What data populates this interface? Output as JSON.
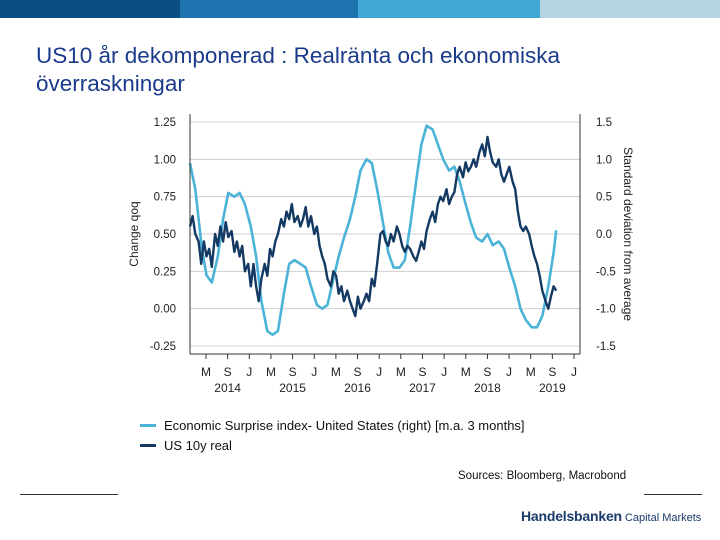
{
  "header": {
    "bar_colors": [
      "#0b4f82",
      "#1d73ad",
      "#3fa6d6",
      "#b6d3e3"
    ]
  },
  "slide": {
    "title": "US10 år dekomponerad : Realränta och ekonomiska överraskningar"
  },
  "chart_data": {
    "type": "line",
    "x_ticks": [
      "M",
      "S",
      "J",
      "M",
      "S",
      "J",
      "M",
      "S",
      "J",
      "M",
      "S",
      "J",
      "M",
      "S",
      "J",
      "M",
      "S",
      "J"
    ],
    "years": [
      "2014",
      "2015",
      "2016",
      "2017",
      "2018",
      "2019"
    ],
    "x_range": [
      2014.0,
      2019.9
    ],
    "y_left": {
      "label": "Change qoq",
      "ticks": [
        "1.25",
        "1.00",
        "0.75",
        "0.50",
        "0.25",
        "0.00",
        "-0.25"
      ],
      "range": [
        -0.25,
        1.25
      ]
    },
    "y_right": {
      "label": "Standard deviation from average",
      "ticks": [
        "1.5",
        "1.0",
        "0.5",
        "0.0",
        "-0.5",
        "-1.0",
        "-1.5"
      ],
      "range": [
        -1.5,
        1.5
      ]
    },
    "grid": true,
    "series": [
      {
        "name": "Economic Surprise index- United States (right) [m.a. 3 months]",
        "color": "#4bb3d8",
        "axis": "right",
        "points": [
          [
            2014.0,
            0.95
          ],
          [
            2014.08,
            0.6
          ],
          [
            2014.18,
            -0.2
          ],
          [
            2014.25,
            -0.55
          ],
          [
            2014.33,
            -0.65
          ],
          [
            2014.42,
            -0.3
          ],
          [
            2014.5,
            0.2
          ],
          [
            2014.58,
            0.55
          ],
          [
            2014.67,
            0.5
          ],
          [
            2014.75,
            0.55
          ],
          [
            2014.83,
            0.4
          ],
          [
            2014.92,
            0.1
          ],
          [
            2015.0,
            -0.3
          ],
          [
            2015.08,
            -0.9
          ],
          [
            2015.17,
            -1.3
          ],
          [
            2015.25,
            -1.35
          ],
          [
            2015.33,
            -1.3
          ],
          [
            2015.42,
            -0.8
          ],
          [
            2015.5,
            -0.4
          ],
          [
            2015.58,
            -0.35
          ],
          [
            2015.67,
            -0.4
          ],
          [
            2015.75,
            -0.45
          ],
          [
            2015.83,
            -0.7
          ],
          [
            2015.92,
            -0.95
          ],
          [
            2016.0,
            -1.0
          ],
          [
            2016.08,
            -0.95
          ],
          [
            2016.17,
            -0.6
          ],
          [
            2016.25,
            -0.3
          ],
          [
            2016.33,
            -0.05
          ],
          [
            2016.42,
            0.2
          ],
          [
            2016.5,
            0.5
          ],
          [
            2016.58,
            0.85
          ],
          [
            2016.67,
            1.0
          ],
          [
            2016.75,
            0.95
          ],
          [
            2016.83,
            0.6
          ],
          [
            2016.92,
            0.15
          ],
          [
            2017.0,
            -0.25
          ],
          [
            2017.08,
            -0.45
          ],
          [
            2017.17,
            -0.45
          ],
          [
            2017.25,
            -0.35
          ],
          [
            2017.33,
            0.1
          ],
          [
            2017.42,
            0.7
          ],
          [
            2017.5,
            1.2
          ],
          [
            2017.58,
            1.45
          ],
          [
            2017.67,
            1.4
          ],
          [
            2017.75,
            1.2
          ],
          [
            2017.83,
            1.0
          ],
          [
            2017.92,
            0.85
          ],
          [
            2018.0,
            0.9
          ],
          [
            2018.08,
            0.7
          ],
          [
            2018.17,
            0.4
          ],
          [
            2018.25,
            0.15
          ],
          [
            2018.33,
            -0.05
          ],
          [
            2018.42,
            -0.1
          ],
          [
            2018.5,
            0.0
          ],
          [
            2018.58,
            -0.15
          ],
          [
            2018.67,
            -0.1
          ],
          [
            2018.75,
            -0.2
          ],
          [
            2018.83,
            -0.45
          ],
          [
            2018.92,
            -0.7
          ],
          [
            2019.0,
            -1.0
          ],
          [
            2019.08,
            -1.15
          ],
          [
            2019.17,
            -1.25
          ],
          [
            2019.25,
            -1.25
          ],
          [
            2019.33,
            -1.1
          ],
          [
            2019.42,
            -0.7
          ],
          [
            2019.5,
            -0.25
          ],
          [
            2019.54,
            0.05
          ]
        ]
      },
      {
        "name": "US 10y real",
        "color": "#143a63",
        "axis": "left",
        "points": [
          [
            2014.0,
            0.55
          ],
          [
            2014.04,
            0.62
          ],
          [
            2014.08,
            0.5
          ],
          [
            2014.13,
            0.45
          ],
          [
            2014.17,
            0.3
          ],
          [
            2014.21,
            0.45
          ],
          [
            2014.25,
            0.35
          ],
          [
            2014.29,
            0.4
          ],
          [
            2014.33,
            0.28
          ],
          [
            2014.38,
            0.5
          ],
          [
            2014.42,
            0.42
          ],
          [
            2014.46,
            0.55
          ],
          [
            2014.5,
            0.45
          ],
          [
            2014.54,
            0.58
          ],
          [
            2014.58,
            0.48
          ],
          [
            2014.63,
            0.52
          ],
          [
            2014.67,
            0.38
          ],
          [
            2014.71,
            0.45
          ],
          [
            2014.75,
            0.35
          ],
          [
            2014.79,
            0.42
          ],
          [
            2014.83,
            0.25
          ],
          [
            2014.88,
            0.3
          ],
          [
            2014.92,
            0.15
          ],
          [
            2014.96,
            0.3
          ],
          [
            2015.0,
            0.15
          ],
          [
            2015.04,
            0.05
          ],
          [
            2015.08,
            0.2
          ],
          [
            2015.13,
            0.3
          ],
          [
            2015.17,
            0.22
          ],
          [
            2015.21,
            0.4
          ],
          [
            2015.25,
            0.35
          ],
          [
            2015.29,
            0.45
          ],
          [
            2015.33,
            0.5
          ],
          [
            2015.38,
            0.6
          ],
          [
            2015.42,
            0.55
          ],
          [
            2015.46,
            0.65
          ],
          [
            2015.5,
            0.6
          ],
          [
            2015.54,
            0.7
          ],
          [
            2015.58,
            0.58
          ],
          [
            2015.63,
            0.62
          ],
          [
            2015.67,
            0.55
          ],
          [
            2015.71,
            0.6
          ],
          [
            2015.75,
            0.68
          ],
          [
            2015.79,
            0.55
          ],
          [
            2015.83,
            0.62
          ],
          [
            2015.88,
            0.5
          ],
          [
            2015.92,
            0.55
          ],
          [
            2015.96,
            0.42
          ],
          [
            2016.0,
            0.35
          ],
          [
            2016.04,
            0.3
          ],
          [
            2016.08,
            0.2
          ],
          [
            2016.13,
            0.15
          ],
          [
            2016.17,
            0.25
          ],
          [
            2016.21,
            0.22
          ],
          [
            2016.25,
            0.1
          ],
          [
            2016.29,
            0.15
          ],
          [
            2016.33,
            0.05
          ],
          [
            2016.38,
            0.12
          ],
          [
            2016.42,
            0.05
          ],
          [
            2016.46,
            0.0
          ],
          [
            2016.5,
            -0.05
          ],
          [
            2016.54,
            0.08
          ],
          [
            2016.58,
            0.0
          ],
          [
            2016.63,
            0.05
          ],
          [
            2016.67,
            0.1
          ],
          [
            2016.71,
            0.05
          ],
          [
            2016.75,
            0.2
          ],
          [
            2016.79,
            0.15
          ],
          [
            2016.83,
            0.3
          ],
          [
            2016.88,
            0.5
          ],
          [
            2016.92,
            0.52
          ],
          [
            2016.96,
            0.45
          ],
          [
            2017.0,
            0.42
          ],
          [
            2017.04,
            0.5
          ],
          [
            2017.08,
            0.45
          ],
          [
            2017.13,
            0.55
          ],
          [
            2017.17,
            0.5
          ],
          [
            2017.21,
            0.42
          ],
          [
            2017.25,
            0.38
          ],
          [
            2017.29,
            0.42
          ],
          [
            2017.33,
            0.4
          ],
          [
            2017.38,
            0.35
          ],
          [
            2017.42,
            0.32
          ],
          [
            2017.46,
            0.38
          ],
          [
            2017.5,
            0.45
          ],
          [
            2017.54,
            0.4
          ],
          [
            2017.58,
            0.52
          ],
          [
            2017.63,
            0.6
          ],
          [
            2017.67,
            0.65
          ],
          [
            2017.71,
            0.58
          ],
          [
            2017.75,
            0.7
          ],
          [
            2017.79,
            0.75
          ],
          [
            2017.83,
            0.72
          ],
          [
            2017.88,
            0.8
          ],
          [
            2017.92,
            0.7
          ],
          [
            2017.96,
            0.75
          ],
          [
            2018.0,
            0.78
          ],
          [
            2018.04,
            0.9
          ],
          [
            2018.08,
            0.95
          ],
          [
            2018.13,
            0.88
          ],
          [
            2018.17,
            0.98
          ],
          [
            2018.21,
            0.92
          ],
          [
            2018.25,
            0.95
          ],
          [
            2018.29,
            1.0
          ],
          [
            2018.33,
            0.95
          ],
          [
            2018.38,
            1.05
          ],
          [
            2018.42,
            1.1
          ],
          [
            2018.46,
            1.02
          ],
          [
            2018.5,
            1.15
          ],
          [
            2018.54,
            1.05
          ],
          [
            2018.58,
            0.98
          ],
          [
            2018.63,
            0.95
          ],
          [
            2018.67,
            1.0
          ],
          [
            2018.71,
            0.9
          ],
          [
            2018.75,
            0.85
          ],
          [
            2018.79,
            0.9
          ],
          [
            2018.83,
            0.95
          ],
          [
            2018.88,
            0.85
          ],
          [
            2018.92,
            0.8
          ],
          [
            2018.96,
            0.65
          ],
          [
            2019.0,
            0.55
          ],
          [
            2019.04,
            0.52
          ],
          [
            2019.08,
            0.55
          ],
          [
            2019.13,
            0.5
          ],
          [
            2019.17,
            0.42
          ],
          [
            2019.21,
            0.35
          ],
          [
            2019.25,
            0.3
          ],
          [
            2019.29,
            0.22
          ],
          [
            2019.33,
            0.12
          ],
          [
            2019.38,
            0.05
          ],
          [
            2019.42,
            0.0
          ],
          [
            2019.46,
            0.08
          ],
          [
            2019.5,
            0.15
          ],
          [
            2019.54,
            0.12
          ]
        ]
      }
    ]
  },
  "legend": {
    "surprise_label": "Economic Surprise index- United States (right) [m.a. 3 months]",
    "real_label": "US 10y real"
  },
  "footer": {
    "source": "Sources: Bloomberg, Macrobond",
    "brand": "Handelsbanken",
    "brand_sub": "Capital Markets"
  }
}
